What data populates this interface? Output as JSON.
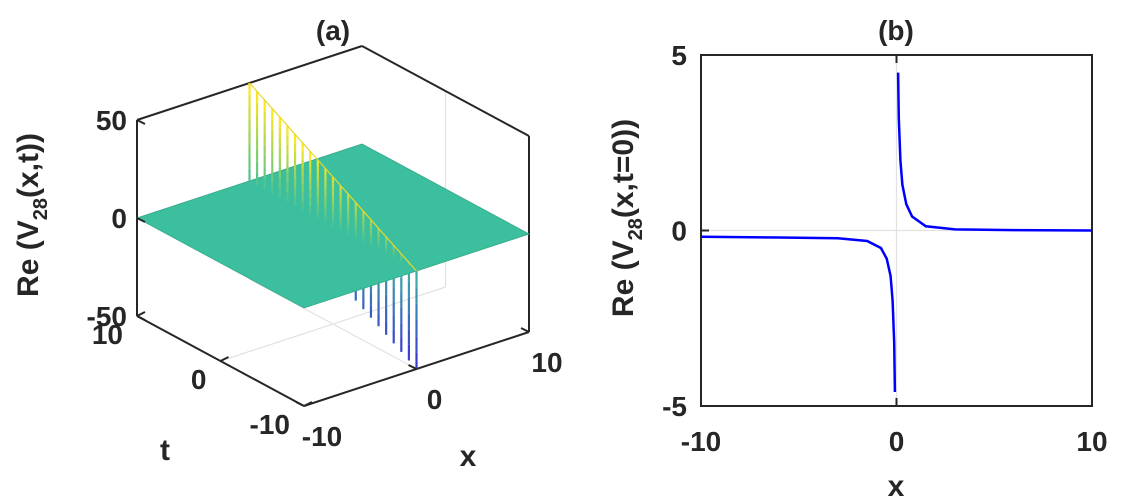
{
  "chart_data": [
    {
      "panel": "(a)",
      "type": "surface",
      "title": "(a)",
      "zlabel_main": "Re (V",
      "zlabel_sub": "28",
      "zlabel_tail": "(x,t))",
      "xlabel": "x",
      "ylabel": "t",
      "xlim": [
        -10,
        10
      ],
      "ylim": [
        -10,
        10
      ],
      "zlim": [
        -50,
        50
      ],
      "x_ticks": [
        "-10",
        "0",
        "10"
      ],
      "y_ticks": [
        "10",
        "0",
        "-10"
      ],
      "z_ticks": [
        "50",
        "0",
        "-50"
      ],
      "surface_value": 0,
      "spike": {
        "line": "x = 0",
        "t_range": [
          -10,
          10
        ],
        "z_max_at_t": [
          {
            "t": 10,
            "z": 50
          },
          {
            "t": 0,
            "z": 25
          },
          {
            "t": -10,
            "z": 0
          }
        ],
        "z_min_at_t": [
          {
            "t": 10,
            "z": 0
          },
          {
            "t": 0,
            "z": -25
          },
          {
            "t": -10,
            "z": -50
          }
        ]
      },
      "colors": {
        "surface": "#3bbf9e",
        "peak": "#f9e721",
        "trough": "#3a3bd0"
      }
    },
    {
      "panel": "(b)",
      "type": "line",
      "title": "(b)",
      "ylabel_main": "Re (V",
      "ylabel_sub": "28",
      "ylabel_tail": "(x,t=0))",
      "xlabel": "x",
      "xlim": [
        -10,
        10
      ],
      "ylim": [
        -5,
        5
      ],
      "x_ticks": [
        "-10",
        "0",
        "10"
      ],
      "y_ticks": [
        "5",
        "0",
        "-5"
      ],
      "series": [
        {
          "color": "#0000ff",
          "left_branch": [
            {
              "x": -10,
              "y": -0.18
            },
            {
              "x": -6,
              "y": -0.2
            },
            {
              "x": -3,
              "y": -0.22
            },
            {
              "x": -1.5,
              "y": -0.3
            },
            {
              "x": -0.8,
              "y": -0.5
            },
            {
              "x": -0.5,
              "y": -0.8
            },
            {
              "x": -0.3,
              "y": -1.3
            },
            {
              "x": -0.2,
              "y": -2.0
            },
            {
              "x": -0.12,
              "y": -3.2
            },
            {
              "x": -0.08,
              "y": -4.6
            }
          ],
          "right_branch": [
            {
              "x": 0.08,
              "y": 4.5
            },
            {
              "x": 0.12,
              "y": 3.2
            },
            {
              "x": 0.2,
              "y": 2.0
            },
            {
              "x": 0.3,
              "y": 1.3
            },
            {
              "x": 0.5,
              "y": 0.75
            },
            {
              "x": 0.8,
              "y": 0.4
            },
            {
              "x": 1.5,
              "y": 0.12
            },
            {
              "x": 3,
              "y": 0.03
            },
            {
              "x": 6,
              "y": 0.01
            },
            {
              "x": 10,
              "y": 0.0
            }
          ]
        }
      ]
    }
  ]
}
